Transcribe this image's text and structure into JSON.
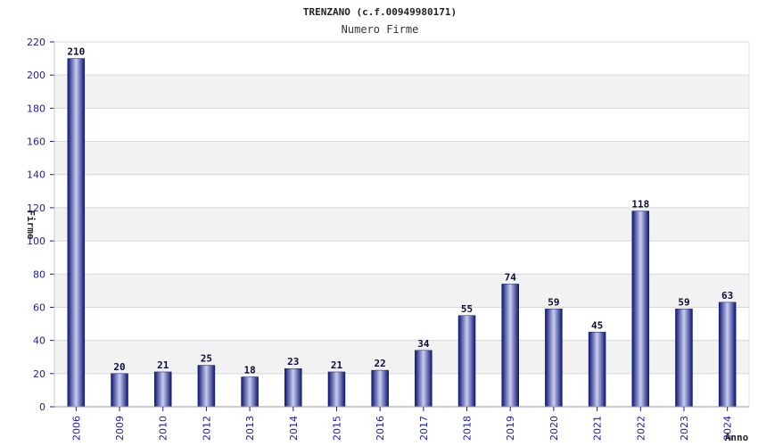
{
  "chart_data": {
    "type": "bar",
    "title": "TRENZANO (c.f.00949980171)",
    "subtitle": "Numero Firme",
    "xlabel": "Anno",
    "ylabel": "Firme",
    "categories": [
      "2006",
      "2009",
      "2010",
      "2012",
      "2013",
      "2014",
      "2015",
      "2016",
      "2017",
      "2018",
      "2019",
      "2020",
      "2021",
      "2022",
      "2023",
      "2024"
    ],
    "values": [
      210,
      20,
      21,
      25,
      18,
      23,
      21,
      22,
      34,
      55,
      74,
      59,
      45,
      118,
      59,
      63
    ],
    "ylim": [
      0,
      220
    ],
    "yticks": [
      0,
      20,
      40,
      60,
      80,
      100,
      120,
      140,
      160,
      180,
      200,
      220
    ],
    "grid": true,
    "data_labels": true,
    "bar_color": "#1f2a8a",
    "band_color": "#f2f2f2",
    "tick_color": "#1a1aa6"
  }
}
